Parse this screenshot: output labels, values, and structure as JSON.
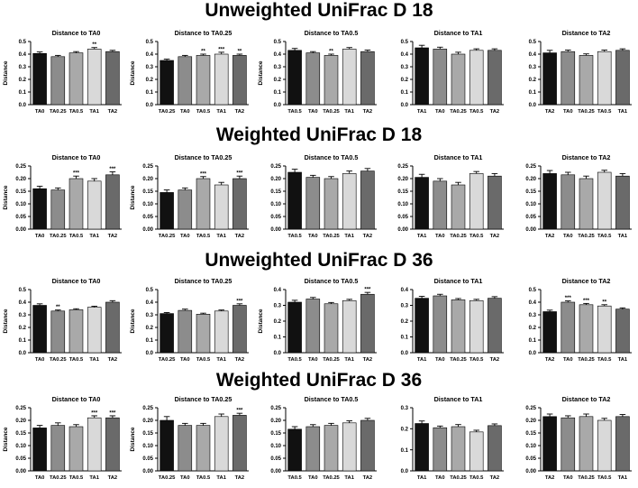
{
  "sections": [
    {
      "title": "Unweighted UniFrac D 18"
    },
    {
      "title": "Weighted UniFrac D 18"
    },
    {
      "title": "Unweighted UniFrac D 36"
    },
    {
      "title": "Weighted UniFrac D 36"
    }
  ],
  "colors": {
    "c1": "#111111",
    "c2": "#8c8c8c",
    "c3": "#a9a9a9",
    "c4": "#d9d9d9",
    "c5": "#6a6a6a"
  },
  "chart_data": [
    {
      "type": "bar",
      "section": 0,
      "title": "Distance to TA0",
      "ylabel": "Distance",
      "ylim": [
        0,
        0.5
      ],
      "yticks": [
        "0.0",
        "0.1",
        "0.2",
        "0.3",
        "0.4",
        "0.5"
      ],
      "categories": [
        "TA0",
        "TA0.25",
        "TA0.5",
        "TA1",
        "TA2"
      ],
      "values": [
        0.405,
        0.38,
        0.41,
        0.44,
        0.42
      ],
      "errors": [
        0.012,
        0.01,
        0.01,
        0.012,
        0.01
      ],
      "annotations": [
        "",
        "",
        "",
        "**",
        ""
      ]
    },
    {
      "type": "bar",
      "section": 0,
      "title": "Distance to TA0.25",
      "ylabel": "Distance",
      "ylim": [
        0,
        0.5
      ],
      "yticks": [
        "0.0",
        "0.1",
        "0.2",
        "0.3",
        "0.4",
        "0.5"
      ],
      "categories": [
        "TA0.25",
        "TA0",
        "TA0.5",
        "TA1",
        "TA2"
      ],
      "values": [
        0.35,
        0.38,
        0.39,
        0.4,
        0.39
      ],
      "errors": [
        0.01,
        0.01,
        0.01,
        0.015,
        0.01
      ],
      "annotations": [
        "",
        "",
        "**",
        "***",
        "**"
      ]
    },
    {
      "type": "bar",
      "section": 0,
      "title": "Distance to TA0.5",
      "ylabel": "Distance",
      "ylim": [
        0,
        0.5
      ],
      "yticks": [
        "0.0",
        "0.1",
        "0.2",
        "0.3",
        "0.4",
        "0.5"
      ],
      "categories": [
        "TA0.5",
        "TA0",
        "TA0.25",
        "TA1",
        "TA2"
      ],
      "values": [
        0.43,
        0.41,
        0.39,
        0.44,
        0.42
      ],
      "errors": [
        0.015,
        0.01,
        0.01,
        0.012,
        0.012
      ],
      "annotations": [
        "",
        "",
        "**",
        "",
        ""
      ]
    },
    {
      "type": "bar",
      "section": 0,
      "title": "Distance to TA1",
      "ylabel": "",
      "ylim": [
        0,
        0.5
      ],
      "yticks": [
        "0.0",
        "0.1",
        "0.2",
        "0.3",
        "0.4",
        "0.5"
      ],
      "categories": [
        "TA1",
        "TA0",
        "TA0.25",
        "TA0.5",
        "TA2"
      ],
      "values": [
        0.45,
        0.44,
        0.4,
        0.43,
        0.43
      ],
      "errors": [
        0.02,
        0.015,
        0.015,
        0.012,
        0.012
      ],
      "annotations": [
        "",
        "",
        "",
        "",
        ""
      ]
    },
    {
      "type": "bar",
      "section": 0,
      "title": "Distance to TA2",
      "ylabel": "",
      "ylim": [
        0,
        0.5
      ],
      "yticks": [
        "0.0",
        "0.1",
        "0.2",
        "0.3",
        "0.4",
        "0.5"
      ],
      "categories": [
        "TA2",
        "TA0",
        "TA0.25",
        "TA0.5",
        "TA1"
      ],
      "values": [
        0.41,
        0.42,
        0.39,
        0.42,
        0.43
      ],
      "errors": [
        0.02,
        0.012,
        0.012,
        0.012,
        0.012
      ],
      "annotations": [
        "",
        "",
        "",
        "",
        ""
      ]
    },
    {
      "type": "bar",
      "section": 1,
      "title": "Distance to TA0",
      "ylabel": "Distance",
      "ylim": [
        0,
        0.25
      ],
      "yticks": [
        "0.00",
        "0.05",
        "0.10",
        "0.15",
        "0.20",
        "0.25"
      ],
      "categories": [
        "TA0",
        "TA0.25",
        "TA0.5",
        "TA1",
        "TA2"
      ],
      "values": [
        0.16,
        0.155,
        0.2,
        0.19,
        0.215
      ],
      "errors": [
        0.01,
        0.008,
        0.01,
        0.01,
        0.012
      ],
      "annotations": [
        "",
        "",
        "***",
        "",
        "***"
      ]
    },
    {
      "type": "bar",
      "section": 1,
      "title": "Distance to TA0.25",
      "ylabel": "Distance",
      "ylim": [
        0,
        0.25
      ],
      "yticks": [
        "0.00",
        "0.05",
        "0.10",
        "0.15",
        "0.20",
        "0.25"
      ],
      "categories": [
        "TA0.25",
        "TA0",
        "TA0.5",
        "TA1",
        "TA2"
      ],
      "values": [
        0.145,
        0.155,
        0.2,
        0.175,
        0.2
      ],
      "errors": [
        0.01,
        0.008,
        0.008,
        0.01,
        0.01
      ],
      "annotations": [
        "",
        "",
        "***",
        "",
        "***"
      ]
    },
    {
      "type": "bar",
      "section": 1,
      "title": "Distance to TA0.5",
      "ylabel": "",
      "ylim": [
        0,
        0.25
      ],
      "yticks": [
        "0.00",
        "0.05",
        "0.10",
        "0.15",
        "0.20",
        "0.25"
      ],
      "categories": [
        "TA0.5",
        "TA0",
        "TA0.25",
        "TA1",
        "TA2"
      ],
      "values": [
        0.225,
        0.205,
        0.2,
        0.22,
        0.23
      ],
      "errors": [
        0.012,
        0.008,
        0.008,
        0.01,
        0.01
      ],
      "annotations": [
        "",
        "",
        "",
        "",
        ""
      ]
    },
    {
      "type": "bar",
      "section": 1,
      "title": "Distance to TA1",
      "ylabel": "",
      "ylim": [
        0,
        0.25
      ],
      "yticks": [
        "0.00",
        "0.05",
        "0.10",
        "0.15",
        "0.20",
        "0.25"
      ],
      "categories": [
        "TA1",
        "TA0",
        "TA0.25",
        "TA0.5",
        "TA2"
      ],
      "values": [
        0.205,
        0.19,
        0.175,
        0.22,
        0.21
      ],
      "errors": [
        0.012,
        0.01,
        0.01,
        0.008,
        0.01
      ],
      "annotations": [
        "",
        "",
        "",
        "",
        ""
      ]
    },
    {
      "type": "bar",
      "section": 1,
      "title": "Distance to TA2",
      "ylabel": "",
      "ylim": [
        0,
        0.25
      ],
      "yticks": [
        "0.00",
        "0.05",
        "0.10",
        "0.15",
        "0.20",
        "0.25"
      ],
      "categories": [
        "TA2",
        "TA0",
        "TA0.25",
        "TA0.5",
        "TA1"
      ],
      "values": [
        0.22,
        0.215,
        0.2,
        0.225,
        0.21
      ],
      "errors": [
        0.012,
        0.01,
        0.01,
        0.008,
        0.01
      ],
      "annotations": [
        "",
        "",
        "",
        "",
        ""
      ]
    },
    {
      "type": "bar",
      "section": 2,
      "title": "Distance to TA0",
      "ylabel": "Distance",
      "ylim": [
        0,
        0.5
      ],
      "yticks": [
        "0.0",
        "0.1",
        "0.2",
        "0.3",
        "0.4",
        "0.5"
      ],
      "categories": [
        "TA0",
        "TA0.25",
        "TA0.5",
        "TA1",
        "TA2"
      ],
      "values": [
        0.375,
        0.33,
        0.34,
        0.36,
        0.4
      ],
      "errors": [
        0.012,
        0.008,
        0.008,
        0.008,
        0.012
      ],
      "annotations": [
        "",
        "**",
        "",
        "",
        ""
      ]
    },
    {
      "type": "bar",
      "section": 2,
      "title": "Distance to TA0.25",
      "ylabel": "Distance",
      "ylim": [
        0,
        0.5
      ],
      "yticks": [
        "0.0",
        "0.1",
        "0.2",
        "0.3",
        "0.4",
        "0.5"
      ],
      "categories": [
        "TA0.25",
        "TA0",
        "TA0.5",
        "TA1",
        "TA2"
      ],
      "values": [
        0.31,
        0.335,
        0.305,
        0.33,
        0.375
      ],
      "errors": [
        0.008,
        0.01,
        0.008,
        0.008,
        0.012
      ],
      "annotations": [
        "",
        "",
        "",
        "",
        "***"
      ]
    },
    {
      "type": "bar",
      "section": 2,
      "title": "Distance to TA0.5",
      "ylabel": "Distance",
      "ylim": [
        0,
        0.4
      ],
      "yticks": [
        "0.0",
        "0.1",
        "0.2",
        "0.3",
        "0.4"
      ],
      "categories": [
        "TA0.5",
        "TA0",
        "TA0.25",
        "TA1",
        "TA2"
      ],
      "values": [
        0.32,
        0.34,
        0.31,
        0.33,
        0.37
      ],
      "errors": [
        0.012,
        0.01,
        0.008,
        0.008,
        0.012
      ],
      "annotations": [
        "",
        "",
        "",
        "",
        "***"
      ]
    },
    {
      "type": "bar",
      "section": 2,
      "title": "Distance to TA1",
      "ylabel": "",
      "ylim": [
        0,
        0.4
      ],
      "yticks": [
        "0.0",
        "0.1",
        "0.2",
        "0.3",
        "0.4"
      ],
      "categories": [
        "TA1",
        "TA0",
        "TA0.25",
        "TA0.5",
        "TA2"
      ],
      "values": [
        0.345,
        0.36,
        0.335,
        0.33,
        0.345
      ],
      "errors": [
        0.012,
        0.01,
        0.008,
        0.008,
        0.01
      ],
      "annotations": [
        "",
        "",
        "",
        "",
        ""
      ]
    },
    {
      "type": "bar",
      "section": 2,
      "title": "Distance to TA2",
      "ylabel": "",
      "ylim": [
        0,
        0.5
      ],
      "yticks": [
        "0.0",
        "0.1",
        "0.2",
        "0.3",
        "0.4",
        "0.5"
      ],
      "categories": [
        "TA2",
        "TA0",
        "TA0.25",
        "TA0.5",
        "TA1"
      ],
      "values": [
        0.325,
        0.4,
        0.38,
        0.37,
        0.345
      ],
      "errors": [
        0.012,
        0.01,
        0.01,
        0.01,
        0.01
      ],
      "annotations": [
        "",
        "***",
        "***",
        "**",
        ""
      ]
    },
    {
      "type": "bar",
      "section": 3,
      "title": "Distance to TA0",
      "ylabel": "Distance",
      "ylim": [
        0,
        0.25
      ],
      "yticks": [
        "0.00",
        "0.05",
        "0.10",
        "0.15",
        "0.20",
        "0.25"
      ],
      "categories": [
        "TA0",
        "TA0.25",
        "TA0.5",
        "TA1",
        "TA2"
      ],
      "values": [
        0.17,
        0.18,
        0.175,
        0.21,
        0.21
      ],
      "errors": [
        0.01,
        0.01,
        0.008,
        0.008,
        0.008
      ],
      "annotations": [
        "",
        "",
        "",
        "***",
        "***"
      ]
    },
    {
      "type": "bar",
      "section": 3,
      "title": "Distance to TA0.25",
      "ylabel": "Distance",
      "ylim": [
        0,
        0.25
      ],
      "yticks": [
        "0.00",
        "0.05",
        "0.10",
        "0.15",
        "0.20",
        "0.25"
      ],
      "categories": [
        "TA0.25",
        "TA0",
        "TA0.5",
        "TA1",
        "TA2"
      ],
      "values": [
        0.2,
        0.18,
        0.18,
        0.215,
        0.22
      ],
      "errors": [
        0.015,
        0.008,
        0.008,
        0.01,
        0.008
      ],
      "annotations": [
        "",
        "",
        "",
        "",
        "***"
      ]
    },
    {
      "type": "bar",
      "section": 3,
      "title": "Distance to TA0.5",
      "ylabel": "",
      "ylim": [
        0,
        0.25
      ],
      "yticks": [
        "0.00",
        "0.05",
        "0.10",
        "0.15",
        "0.20",
        "0.25"
      ],
      "categories": [
        "TA0.5",
        "TA0",
        "TA0.25",
        "TA1",
        "TA2"
      ],
      "values": [
        0.165,
        0.175,
        0.18,
        0.19,
        0.2
      ],
      "errors": [
        0.01,
        0.008,
        0.008,
        0.008,
        0.008
      ],
      "annotations": [
        "",
        "",
        "",
        "",
        ""
      ]
    },
    {
      "type": "bar",
      "section": 3,
      "title": "Distance to TA1",
      "ylabel": "",
      "ylim": [
        0,
        0.3
      ],
      "yticks": [
        "0.0",
        "0.1",
        "0.2",
        "0.3"
      ],
      "categories": [
        "TA1",
        "TA0",
        "TA0.25",
        "TA0.5",
        "TA2"
      ],
      "values": [
        0.225,
        0.205,
        0.21,
        0.185,
        0.215
      ],
      "errors": [
        0.012,
        0.008,
        0.01,
        0.008,
        0.008
      ],
      "annotations": [
        "",
        "",
        "",
        "",
        ""
      ]
    },
    {
      "type": "bar",
      "section": 3,
      "title": "Distance to TA2",
      "ylabel": "",
      "ylim": [
        0,
        0.25
      ],
      "yticks": [
        "0.00",
        "0.05",
        "0.10",
        "0.15",
        "0.20",
        "0.25"
      ],
      "categories": [
        "TA2",
        "TA0",
        "TA0.25",
        "TA0.5",
        "TA1"
      ],
      "values": [
        0.215,
        0.21,
        0.215,
        0.2,
        0.215
      ],
      "errors": [
        0.01,
        0.008,
        0.01,
        0.008,
        0.008
      ],
      "annotations": [
        "",
        "",
        "",
        "",
        ""
      ]
    }
  ]
}
